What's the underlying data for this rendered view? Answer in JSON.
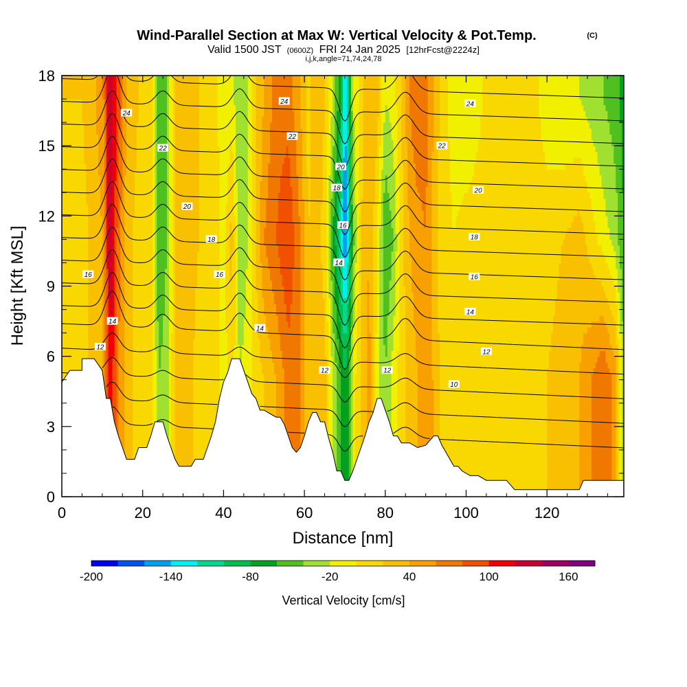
{
  "chart_data": {
    "type": "heatmap",
    "title": "Wind-Parallel Section at Max W: Vertical Velocity & Pot.Temp.",
    "copyright": "(C)",
    "subtitle": {
      "valid_prefix": "Valid 1500 JST",
      "utc": "(0600Z)",
      "date": "FRI 24 Jan 2025",
      "forecast": "[12hrFcst@2224z]"
    },
    "indices": "i,j,k,angle=71,74,24,78",
    "xlabel": "Distance [nm]",
    "ylabel": "Height [Kft MSL]",
    "xlim": [
      0,
      139
    ],
    "ylim": [
      0,
      18
    ],
    "x_ticks": [
      0,
      20,
      40,
      60,
      80,
      100,
      120
    ],
    "y_ticks": [
      0,
      3,
      6,
      9,
      12,
      15,
      18
    ],
    "colorbar": {
      "label": "Vertical Velocity [cm/s]",
      "min": -200,
      "max": 180,
      "step": 20,
      "tick_labels": [
        "-200",
        "-140",
        "-80",
        "-20",
        "40",
        "100",
        "160"
      ],
      "colors": [
        "#0000f0",
        "#0050f0",
        "#00a0f0",
        "#00f0f0",
        "#00d890",
        "#00c050",
        "#00a020",
        "#50c020",
        "#a0e030",
        "#f0f000",
        "#f8d800",
        "#f8c000",
        "#f8a000",
        "#f07800",
        "#f05000",
        "#f00000",
        "#c80030",
        "#a00060",
        "#800080"
      ]
    },
    "terrain": [
      [
        0,
        4.9
      ],
      [
        2,
        5.4
      ],
      [
        5,
        5.4
      ],
      [
        5,
        5.9
      ],
      [
        8,
        5.9
      ],
      [
        10,
        5.4
      ],
      [
        11,
        4.2
      ],
      [
        12,
        4.2
      ],
      [
        13,
        3.2
      ],
      [
        14,
        2.6
      ],
      [
        15,
        2.1
      ],
      [
        16,
        1.6
      ],
      [
        18,
        1.6
      ],
      [
        19,
        2.1
      ],
      [
        21,
        2.1
      ],
      [
        22,
        2.6
      ],
      [
        23,
        3.2
      ],
      [
        25,
        3.2
      ],
      [
        26,
        2.6
      ],
      [
        27,
        2.1
      ],
      [
        28,
        1.6
      ],
      [
        29,
        1.3
      ],
      [
        32,
        1.3
      ],
      [
        33,
        1.6
      ],
      [
        35,
        1.6
      ],
      [
        36,
        2.1
      ],
      [
        37,
        2.6
      ],
      [
        38,
        3.2
      ],
      [
        39,
        4.2
      ],
      [
        40,
        4.9
      ],
      [
        41,
        5.3
      ],
      [
        42,
        5.9
      ],
      [
        44,
        5.9
      ],
      [
        45,
        5.4
      ],
      [
        46,
        4.9
      ],
      [
        47,
        4.4
      ],
      [
        48,
        4.2
      ],
      [
        49,
        3.7
      ],
      [
        50,
        3.7
      ],
      [
        51,
        3.6
      ],
      [
        53,
        3.4
      ],
      [
        54,
        3.4
      ],
      [
        55,
        3.1
      ],
      [
        56,
        2.6
      ],
      [
        57,
        2.1
      ],
      [
        58,
        1.9
      ],
      [
        59,
        2.1
      ],
      [
        60,
        2.6
      ],
      [
        61,
        3.2
      ],
      [
        62,
        3.6
      ],
      [
        63,
        3.6
      ],
      [
        64,
        3.2
      ],
      [
        65,
        3.2
      ],
      [
        66,
        2.5
      ],
      [
        67,
        1.9
      ],
      [
        68,
        1.1
      ],
      [
        69,
        1.1
      ],
      [
        70,
        0.7
      ],
      [
        71,
        0.7
      ],
      [
        72,
        1.1
      ],
      [
        73,
        1.6
      ],
      [
        74,
        2.1
      ],
      [
        75,
        2.6
      ],
      [
        76,
        3.2
      ],
      [
        77,
        3.6
      ],
      [
        78,
        4.2
      ],
      [
        79,
        4.2
      ],
      [
        81,
        3.2
      ],
      [
        82,
        2.6
      ],
      [
        83,
        2.6
      ],
      [
        84,
        2.3
      ],
      [
        86,
        2.3
      ],
      [
        88,
        2.1
      ],
      [
        90,
        2.2
      ],
      [
        92,
        2.6
      ],
      [
        93,
        2.6
      ],
      [
        94,
        2.2
      ],
      [
        95,
        1.9
      ],
      [
        96,
        1.6
      ],
      [
        97,
        1.3
      ],
      [
        98,
        1.3
      ],
      [
        99,
        1.1
      ],
      [
        101,
        0.9
      ],
      [
        103,
        0.9
      ],
      [
        105,
        0.7
      ],
      [
        110,
        0.7
      ],
      [
        112,
        0.3
      ],
      [
        128,
        0.3
      ],
      [
        129,
        0.7
      ],
      [
        137,
        0.7
      ],
      [
        139,
        0.7
      ]
    ],
    "vertical_velocity_field": {
      "x_grid": [
        0,
        5,
        10,
        12,
        14,
        16,
        19,
        22,
        24,
        26,
        28,
        31,
        34,
        38,
        40,
        42,
        44,
        46,
        48,
        50,
        53,
        56,
        59,
        61,
        63,
        65,
        67,
        69,
        70,
        71,
        72,
        74,
        76,
        78,
        80,
        82,
        84,
        86,
        88,
        90,
        92,
        94,
        97,
        100,
        104,
        108,
        112,
        116,
        120,
        124,
        128,
        131,
        134,
        137,
        139
      ],
      "bands": {
        "low": [
          20,
          10,
          40,
          120,
          60,
          30,
          10,
          20,
          -40,
          -30,
          20,
          30,
          10,
          10,
          -10,
          10,
          -20,
          -10,
          10,
          20,
          40,
          70,
          60,
          20,
          40,
          30,
          -20,
          -60,
          -80,
          -60,
          -10,
          20,
          50,
          -10,
          -40,
          -10,
          10,
          30,
          40,
          40,
          40,
          10,
          10,
          10,
          10,
          0,
          10,
          10,
          20,
          30,
          40,
          60,
          80,
          50,
          -40
        ],
        "mid": [
          20,
          10,
          40,
          140,
          70,
          30,
          10,
          20,
          -60,
          -40,
          20,
          30,
          20,
          10,
          -10,
          30,
          -40,
          -20,
          20,
          60,
          80,
          100,
          60,
          20,
          30,
          10,
          -60,
          -120,
          -160,
          -120,
          -50,
          20,
          40,
          0,
          -60,
          -40,
          10,
          40,
          50,
          60,
          30,
          10,
          0,
          10,
          10,
          10,
          20,
          10,
          10,
          20,
          30,
          10,
          -10,
          -30,
          -60
        ],
        "up": [
          20,
          20,
          50,
          130,
          90,
          40,
          20,
          10,
          -50,
          -40,
          20,
          30,
          20,
          10,
          -20,
          -10,
          -40,
          -20,
          20,
          40,
          70,
          70,
          40,
          10,
          40,
          20,
          -20,
          -80,
          -150,
          -90,
          -20,
          10,
          40,
          30,
          -20,
          -10,
          20,
          60,
          80,
          70,
          40,
          10,
          -10,
          -20,
          0,
          10,
          20,
          10,
          -10,
          -20,
          -20,
          -30,
          -40,
          -50,
          -70
        ]
      }
    },
    "theta_contours": [
      10,
      11,
      12,
      13,
      14,
      15,
      16,
      17,
      18,
      19,
      20,
      21,
      22,
      23,
      24,
      25
    ],
    "theta_labels": [
      {
        "text": "24",
        "x": 16,
        "y": 16.4
      },
      {
        "text": "22",
        "x": 25,
        "y": 14.9
      },
      {
        "text": "20",
        "x": 31,
        "y": 12.4
      },
      {
        "text": "18",
        "x": 37,
        "y": 11.0
      },
      {
        "text": "16",
        "x": 39,
        "y": 9.5
      },
      {
        "text": "16",
        "x": 6.5,
        "y": 9.5
      },
      {
        "text": "14",
        "x": 12.5,
        "y": 7.5
      },
      {
        "text": "12",
        "x": 9.5,
        "y": 6.4
      },
      {
        "text": "24",
        "x": 55,
        "y": 16.9
      },
      {
        "text": "22",
        "x": 57,
        "y": 15.4
      },
      {
        "text": "14",
        "x": 49,
        "y": 7.2
      },
      {
        "text": "20",
        "x": 69,
        "y": 14.1
      },
      {
        "text": "18",
        "x": 68,
        "y": 13.2
      },
      {
        "text": "16",
        "x": 69.5,
        "y": 11.6
      },
      {
        "text": "14",
        "x": 68.5,
        "y": 10.0
      },
      {
        "text": "12",
        "x": 65,
        "y": 5.4
      },
      {
        "text": "12",
        "x": 80.5,
        "y": 5.4
      },
      {
        "text": "22",
        "x": 94,
        "y": 15.0
      },
      {
        "text": "24",
        "x": 101,
        "y": 16.8
      },
      {
        "text": "20",
        "x": 103,
        "y": 13.1
      },
      {
        "text": "18",
        "x": 102,
        "y": 11.1
      },
      {
        "text": "16",
        "x": 102,
        "y": 9.4
      },
      {
        "text": "14",
        "x": 101,
        "y": 7.9
      },
      {
        "text": "12",
        "x": 105,
        "y": 6.2
      },
      {
        "text": "10",
        "x": 97,
        "y": 4.8
      }
    ]
  }
}
